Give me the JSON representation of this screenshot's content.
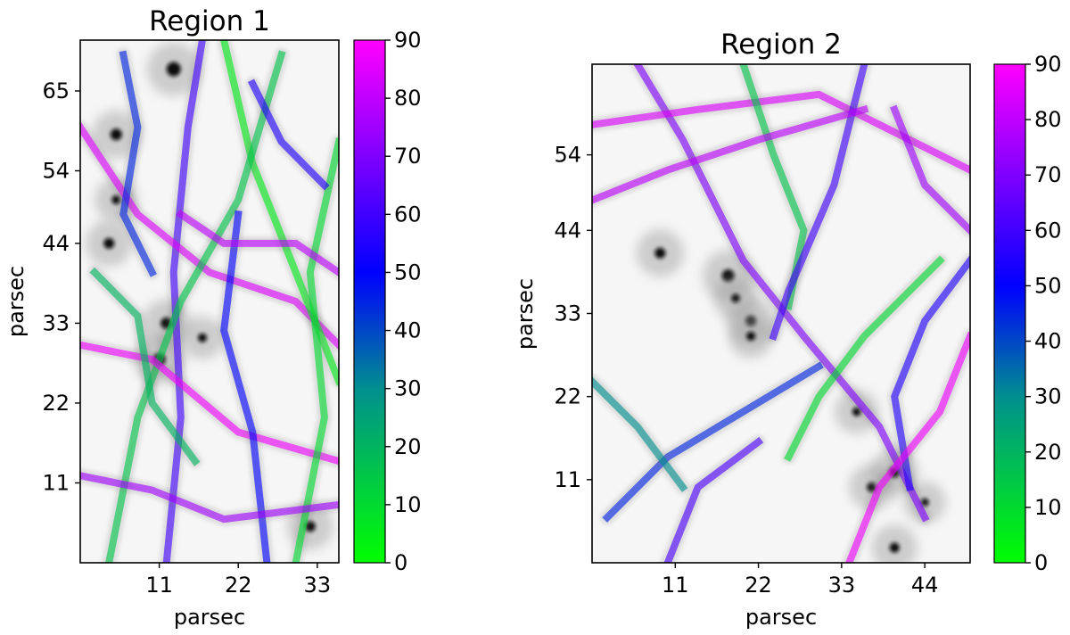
{
  "colormap": {
    "stops": [
      "#00ff00",
      "#008f8f",
      "#0000ff",
      "#ff00ff"
    ]
  },
  "chart_data": [
    {
      "type": "heatmap",
      "title": "Region 1",
      "xlabel": "parsec",
      "ylabel": "parsec",
      "xlim": [
        0,
        36
      ],
      "ylim": [
        0,
        72
      ],
      "xticks": [
        11,
        22,
        33
      ],
      "yticks": [
        11,
        22,
        33,
        44,
        54,
        65
      ],
      "xtick_labels": [
        "11",
        "22",
        "33"
      ],
      "ytick_labels": [
        "11",
        "22",
        "33",
        "44",
        "54",
        "65"
      ],
      "colorbar": {
        "min": 0,
        "max": 90,
        "ticks": [
          0,
          10,
          20,
          30,
          40,
          50,
          60,
          70,
          80,
          90
        ],
        "tick_labels": [
          "0",
          "10",
          "20",
          "30",
          "40",
          "50",
          "60",
          "70",
          "80",
          "90"
        ]
      },
      "filaments": [
        {
          "points": [
            [
              12,
              0
            ],
            [
              14,
              20
            ],
            [
              13,
              40
            ],
            [
              15,
              60
            ],
            [
              17,
              72
            ]
          ],
          "angle": 60
        },
        {
          "points": [
            [
              0,
              60
            ],
            [
              8,
              48
            ],
            [
              18,
              40
            ],
            [
              30,
              36
            ],
            [
              36,
              30
            ]
          ],
          "angle": 85
        },
        {
          "points": [
            [
              20,
              72
            ],
            [
              24,
              55
            ],
            [
              30,
              40
            ],
            [
              36,
              25
            ]
          ],
          "angle": 5
        },
        {
          "points": [
            [
              4,
              0
            ],
            [
              8,
              20
            ],
            [
              14,
              36
            ],
            [
              22,
              50
            ],
            [
              28,
              70
            ]
          ],
          "angle": 15
        },
        {
          "points": [
            [
              0,
              30
            ],
            [
              10,
              28
            ],
            [
              22,
              18
            ],
            [
              36,
              14
            ]
          ],
          "angle": 88
        },
        {
          "points": [
            [
              26,
              0
            ],
            [
              24,
              18
            ],
            [
              20,
              32
            ],
            [
              22,
              48
            ]
          ],
          "angle": 50
        },
        {
          "points": [
            [
              30,
              0
            ],
            [
              34,
              20
            ],
            [
              32,
              40
            ],
            [
              36,
              58
            ]
          ],
          "angle": 10
        },
        {
          "points": [
            [
              0,
              12
            ],
            [
              10,
              10
            ],
            [
              20,
              6
            ],
            [
              36,
              8
            ]
          ],
          "angle": 75
        },
        {
          "points": [
            [
              6,
              70
            ],
            [
              8,
              60
            ],
            [
              6,
              48
            ],
            [
              10,
              40
            ]
          ],
          "angle": 45
        },
        {
          "points": [
            [
              14,
              48
            ],
            [
              20,
              44
            ],
            [
              30,
              44
            ],
            [
              36,
              40
            ]
          ],
          "angle": 80
        },
        {
          "points": [
            [
              2,
              40
            ],
            [
              8,
              34
            ],
            [
              10,
              22
            ],
            [
              16,
              14
            ]
          ],
          "angle": 20
        },
        {
          "points": [
            [
              24,
              66
            ],
            [
              28,
              58
            ],
            [
              34,
              52
            ]
          ],
          "angle": 55
        }
      ],
      "clumps": [
        {
          "x": 4,
          "y": 44,
          "s": 1.2
        },
        {
          "x": 11,
          "y": 28,
          "s": 1.4
        },
        {
          "x": 12,
          "y": 33,
          "s": 1.3
        },
        {
          "x": 13,
          "y": 68,
          "s": 1.6
        },
        {
          "x": 5,
          "y": 59,
          "s": 1.3
        },
        {
          "x": 5,
          "y": 50,
          "s": 1.0
        },
        {
          "x": 32,
          "y": 5,
          "s": 1.2
        },
        {
          "x": 17,
          "y": 31,
          "s": 1.0
        }
      ]
    },
    {
      "type": "heatmap",
      "title": "Region 2",
      "xlabel": "parsec",
      "ylabel": "parsec",
      "xlim": [
        0,
        50
      ],
      "ylim": [
        0,
        66
      ],
      "xticks": [
        11,
        22,
        33,
        44
      ],
      "yticks": [
        11,
        22,
        33,
        44,
        54
      ],
      "xtick_labels": [
        "11",
        "22",
        "33",
        "44"
      ],
      "ytick_labels": [
        "11",
        "22",
        "33",
        "44",
        "54"
      ],
      "colorbar": {
        "min": 0,
        "max": 90,
        "ticks": [
          0,
          10,
          20,
          30,
          40,
          50,
          60,
          70,
          80,
          90
        ],
        "tick_labels": [
          "0",
          "10",
          "20",
          "30",
          "40",
          "50",
          "60",
          "70",
          "80",
          "90"
        ]
      },
      "filaments": [
        {
          "points": [
            [
              6,
              66
            ],
            [
              12,
              56
            ],
            [
              20,
              40
            ],
            [
              28,
              30
            ],
            [
              38,
              18
            ],
            [
              44,
              6
            ]
          ],
          "angle": 70
        },
        {
          "points": [
            [
              0,
              58
            ],
            [
              14,
              60
            ],
            [
              30,
              62
            ],
            [
              50,
              52
            ]
          ],
          "angle": 85
        },
        {
          "points": [
            [
              20,
              66
            ],
            [
              24,
              54
            ],
            [
              28,
              44
            ],
            [
              26,
              34
            ]
          ],
          "angle": 15
        },
        {
          "points": [
            [
              36,
              66
            ],
            [
              32,
              50
            ],
            [
              26,
              36
            ],
            [
              24,
              30
            ]
          ],
          "angle": 60
        },
        {
          "points": [
            [
              0,
              48
            ],
            [
              10,
              52
            ],
            [
              22,
              56
            ],
            [
              36,
              60
            ]
          ],
          "angle": 80
        },
        {
          "points": [
            [
              2,
              6
            ],
            [
              10,
              14
            ],
            [
              20,
              20
            ],
            [
              30,
              26
            ]
          ],
          "angle": 45
        },
        {
          "points": [
            [
              50,
              40
            ],
            [
              44,
              32
            ],
            [
              40,
              22
            ],
            [
              42,
              10
            ]
          ],
          "angle": 55
        },
        {
          "points": [
            [
              34,
              0
            ],
            [
              38,
              10
            ],
            [
              46,
              20
            ],
            [
              50,
              30
            ]
          ],
          "angle": 88
        },
        {
          "points": [
            [
              26,
              14
            ],
            [
              30,
              22
            ],
            [
              36,
              30
            ],
            [
              46,
              40
            ]
          ],
          "angle": 10
        },
        {
          "points": [
            [
              10,
              0
            ],
            [
              14,
              10
            ],
            [
              22,
              16
            ]
          ],
          "angle": 62
        },
        {
          "points": [
            [
              0,
              24
            ],
            [
              6,
              18
            ],
            [
              12,
              10
            ]
          ],
          "angle": 30
        },
        {
          "points": [
            [
              40,
              60
            ],
            [
              44,
              50
            ],
            [
              50,
              44
            ]
          ],
          "angle": 75
        }
      ],
      "clumps": [
        {
          "x": 9,
          "y": 41,
          "s": 1.2
        },
        {
          "x": 18,
          "y": 38,
          "s": 1.4
        },
        {
          "x": 19,
          "y": 35,
          "s": 1.0
        },
        {
          "x": 21,
          "y": 32,
          "s": 1.2
        },
        {
          "x": 21,
          "y": 30,
          "s": 1.0
        },
        {
          "x": 35,
          "y": 20,
          "s": 1.0
        },
        {
          "x": 37,
          "y": 10,
          "s": 1.1
        },
        {
          "x": 40,
          "y": 12,
          "s": 1.2
        },
        {
          "x": 40,
          "y": 2,
          "s": 1.1
        },
        {
          "x": 44,
          "y": 8,
          "s": 0.9
        }
      ]
    }
  ]
}
